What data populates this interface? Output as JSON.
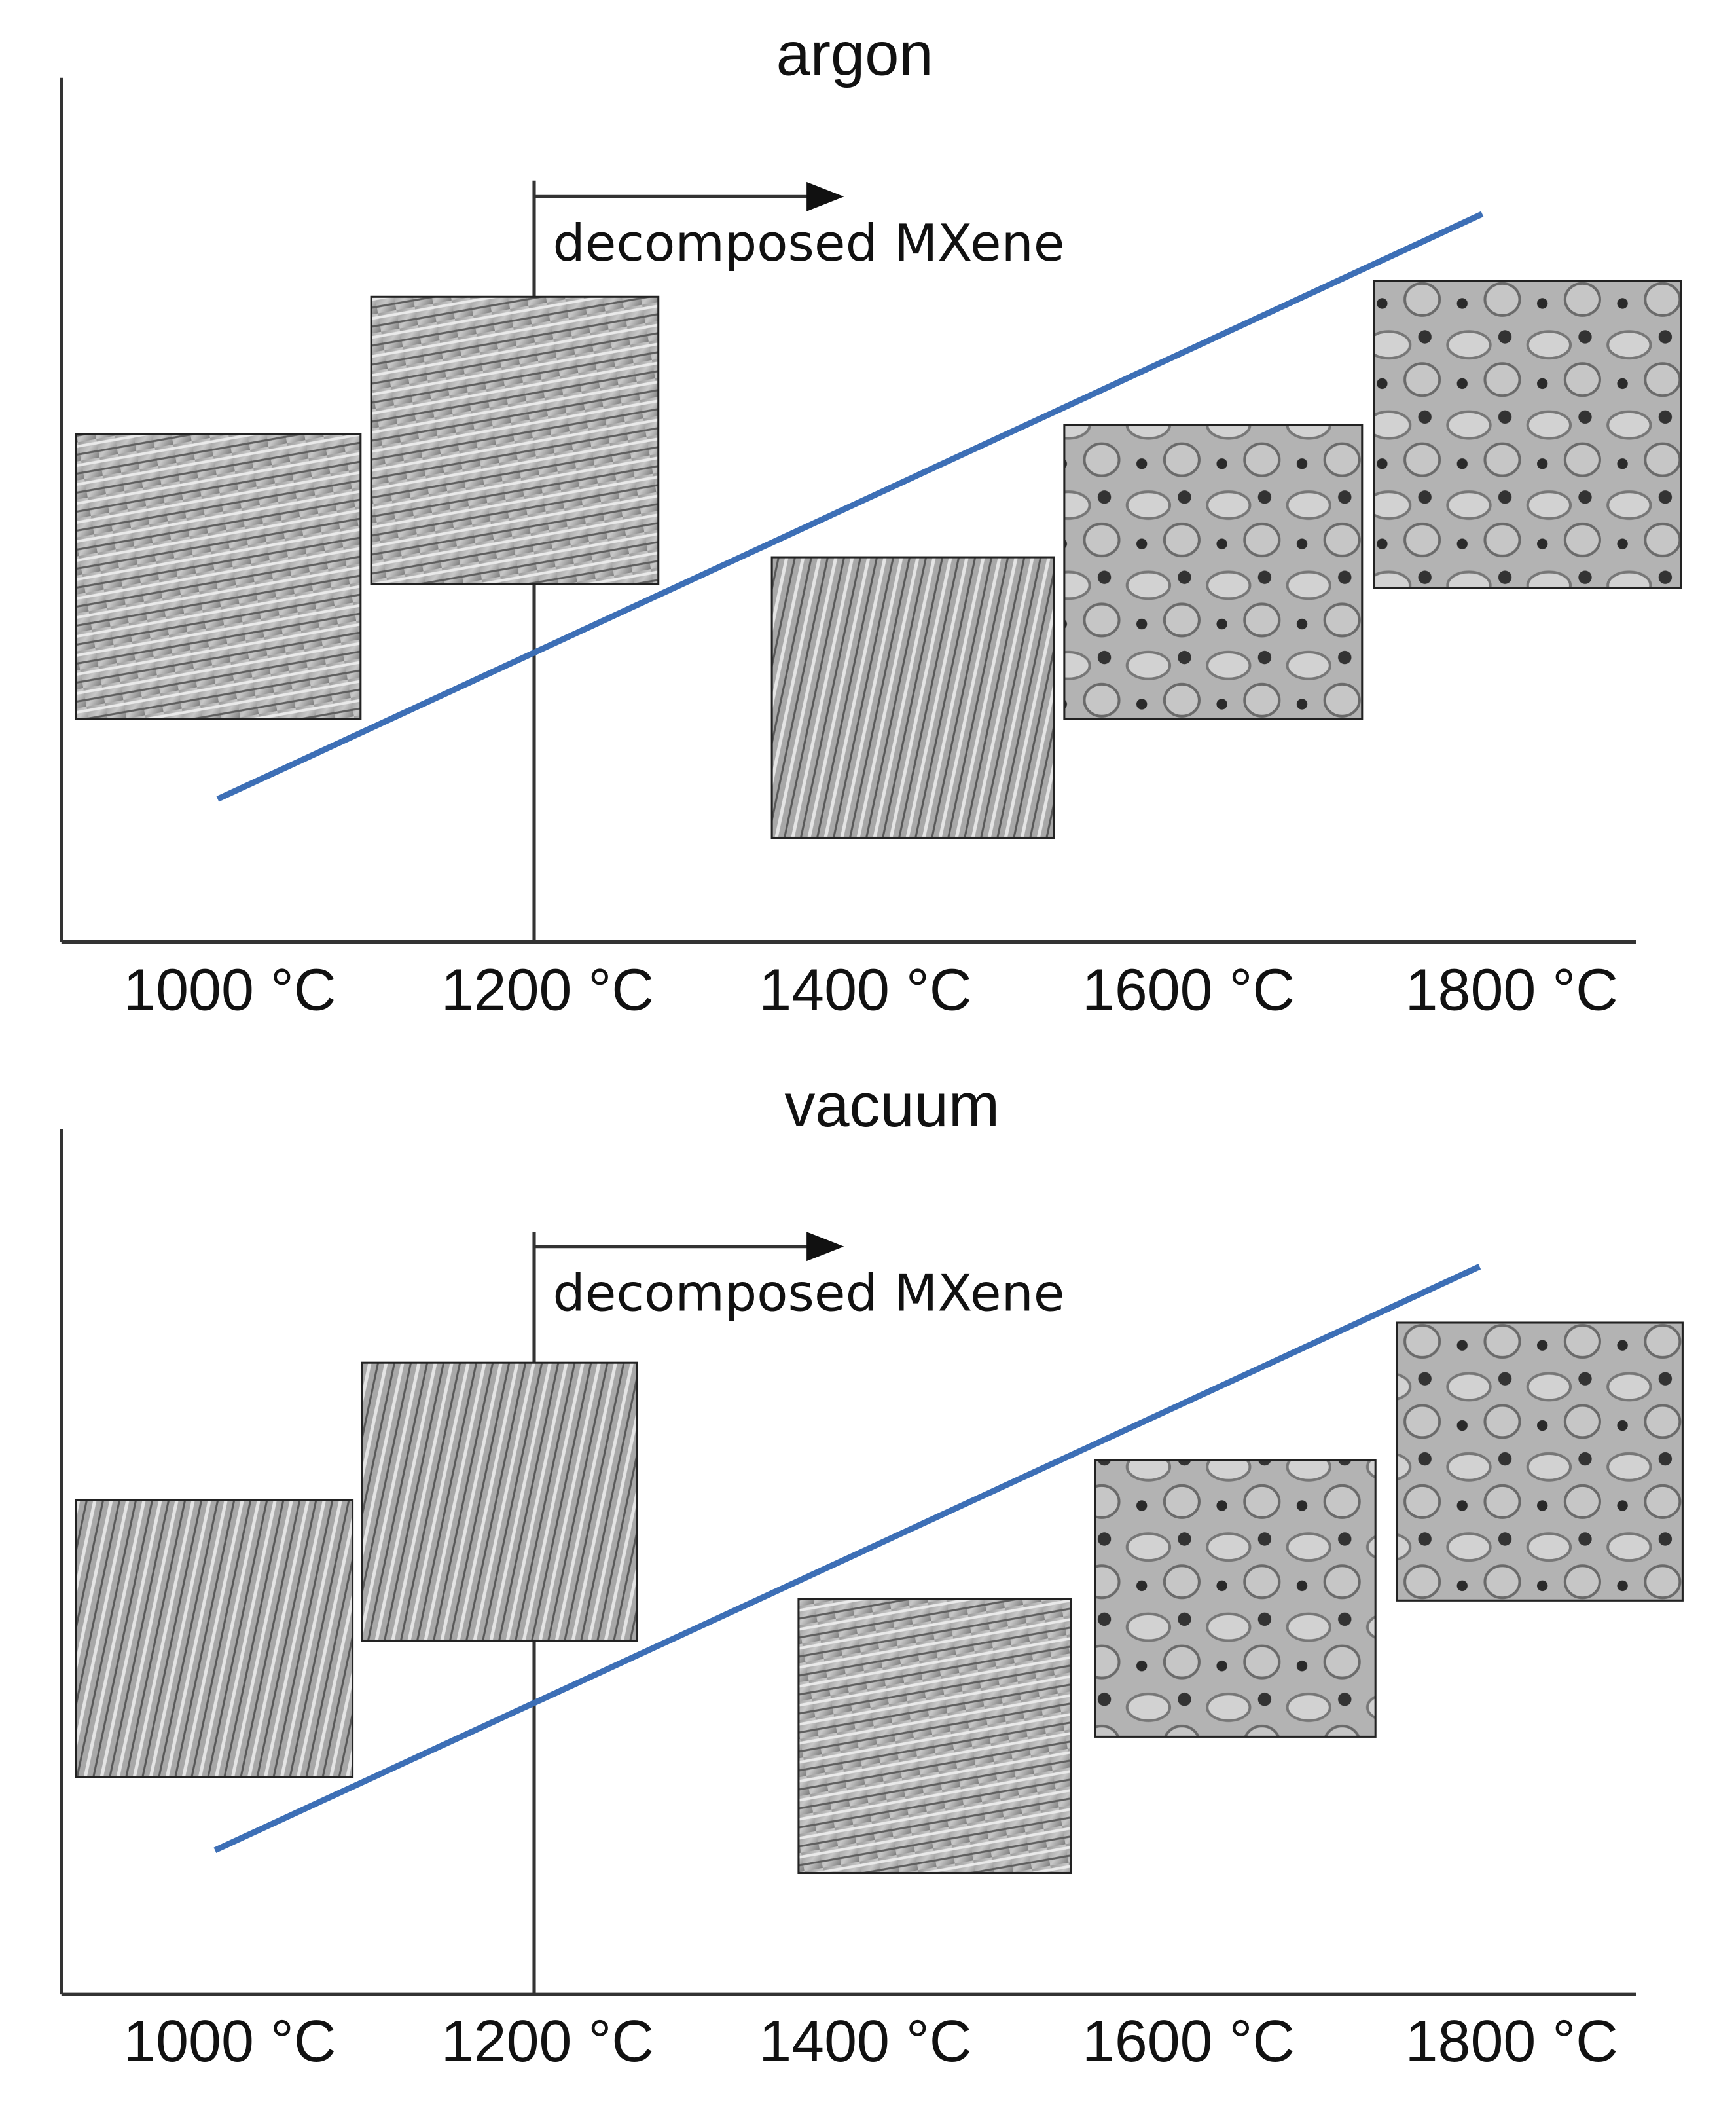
{
  "panels": [
    {
      "title": "argon",
      "annotation": "decomposed MXene",
      "ticks": [
        "1000 °C",
        "1200 °C",
        "1400 °C",
        "1600 °C",
        "1800 °C"
      ]
    },
    {
      "title": "vacuum",
      "annotation": "decomposed MXene",
      "ticks": [
        "1000 °C",
        "1200 °C",
        "1400 °C",
        "1600 °C",
        "1800 °C"
      ]
    }
  ]
}
